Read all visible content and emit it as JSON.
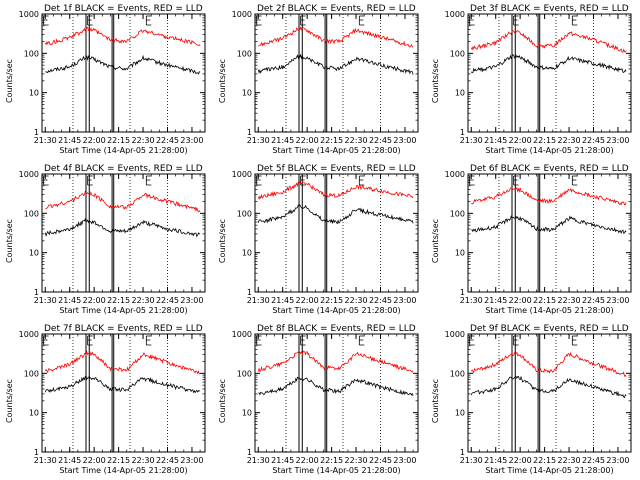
{
  "figure": {
    "xlabel": "Start Time (14-Apr-05 21:28:00)",
    "ylabel": "Counts/sec",
    "xticks": [
      "21:30",
      "21:45",
      "22:00",
      "22:15",
      "22:30",
      "22:45",
      "23:00"
    ],
    "yticks": [
      "1",
      "10",
      "100",
      "1000"
    ],
    "colors": {
      "events": "#000000",
      "lld": "#ff0000"
    }
  },
  "chart_data": [
    {
      "type": "line",
      "title": "Det 1f BLACK = Events, RED = LLD",
      "xticks": [
        "21:30",
        "21:45",
        "22:00",
        "22:15",
        "22:30",
        "22:45",
        "23:00"
      ],
      "ylim": [
        1,
        1000
      ],
      "yscale": "log",
      "series": [
        {
          "name": "Events",
          "color": "#000000",
          "x": [
            "21:30",
            "21:45",
            "21:55",
            "22:00",
            "22:10",
            "22:20",
            "22:30",
            "22:45",
            "23:05"
          ],
          "values": [
            35,
            45,
            80,
            70,
            45,
            40,
            75,
            50,
            32
          ]
        },
        {
          "name": "LLD",
          "color": "#ff0000",
          "x": [
            "21:30",
            "21:45",
            "21:55",
            "22:00",
            "22:10",
            "22:20",
            "22:30",
            "22:45",
            "23:05"
          ],
          "values": [
            170,
            250,
            420,
            380,
            220,
            200,
            380,
            260,
            170
          ]
        }
      ]
    },
    {
      "type": "line",
      "title": "Det 2f BLACK = Events, RED = LLD",
      "xticks": [
        "21:30",
        "21:45",
        "22:00",
        "22:15",
        "22:30",
        "22:45",
        "23:00"
      ],
      "ylim": [
        1,
        1000
      ],
      "yscale": "log",
      "series": [
        {
          "name": "Events",
          "color": "#000000",
          "x": [
            "21:30",
            "21:45",
            "21:55",
            "22:00",
            "22:10",
            "22:20",
            "22:30",
            "22:45",
            "23:05"
          ],
          "values": [
            35,
            45,
            85,
            75,
            45,
            40,
            75,
            50,
            32
          ]
        },
        {
          "name": "LLD",
          "color": "#ff0000",
          "x": [
            "21:30",
            "21:45",
            "21:55",
            "22:00",
            "22:10",
            "22:20",
            "22:30",
            "22:45",
            "23:05"
          ],
          "values": [
            160,
            240,
            430,
            390,
            210,
            200,
            390,
            260,
            150
          ]
        }
      ]
    },
    {
      "type": "line",
      "title": "Det 3f BLACK = Events, RED = LLD",
      "xticks": [
        "21:30",
        "21:45",
        "22:00",
        "22:15",
        "22:30",
        "22:45",
        "23:00"
      ],
      "ylim": [
        1,
        1000
      ],
      "yscale": "log",
      "series": [
        {
          "name": "Events",
          "color": "#000000",
          "x": [
            "21:30",
            "21:45",
            "21:55",
            "22:00",
            "22:10",
            "22:20",
            "22:30",
            "22:45",
            "23:05"
          ],
          "values": [
            35,
            45,
            85,
            80,
            45,
            40,
            75,
            55,
            35
          ]
        },
        {
          "name": "LLD",
          "color": "#ff0000",
          "x": [
            "21:30",
            "21:45",
            "21:55",
            "22:00",
            "22:10",
            "22:20",
            "22:30",
            "22:45",
            "23:05"
          ],
          "values": [
            130,
            190,
            350,
            330,
            160,
            150,
            330,
            220,
            110
          ]
        }
      ]
    },
    {
      "type": "line",
      "title": "Det 4f BLACK = Events, RED = LLD",
      "xticks": [
        "21:30",
        "21:45",
        "22:00",
        "22:15",
        "22:30",
        "22:45",
        "23:00"
      ],
      "ylim": [
        1,
        1000
      ],
      "yscale": "log",
      "series": [
        {
          "name": "Events",
          "color": "#000000",
          "x": [
            "21:30",
            "21:45",
            "21:55",
            "22:00",
            "22:10",
            "22:20",
            "22:30",
            "22:45",
            "23:05"
          ],
          "values": [
            30,
            40,
            65,
            60,
            35,
            35,
            60,
            40,
            28
          ]
        },
        {
          "name": "LLD",
          "color": "#ff0000",
          "x": [
            "21:30",
            "21:45",
            "21:55",
            "22:00",
            "22:10",
            "22:20",
            "22:30",
            "22:45",
            "23:05"
          ],
          "values": [
            140,
            200,
            330,
            300,
            150,
            140,
            300,
            200,
            120
          ]
        }
      ]
    },
    {
      "type": "line",
      "title": "Det 5f BLACK = Events, RED = LLD",
      "xticks": [
        "21:30",
        "21:45",
        "22:00",
        "22:15",
        "22:30",
        "22:45",
        "23:00"
      ],
      "ylim": [
        1,
        1000
      ],
      "yscale": "log",
      "series": [
        {
          "name": "Events",
          "color": "#000000",
          "x": [
            "21:30",
            "21:45",
            "21:55",
            "22:00",
            "22:10",
            "22:20",
            "22:30",
            "22:45",
            "23:05"
          ],
          "values": [
            60,
            80,
            150,
            140,
            65,
            60,
            125,
            90,
            60
          ]
        },
        {
          "name": "LLD",
          "color": "#ff0000",
          "x": [
            "21:30",
            "21:45",
            "21:55",
            "22:00",
            "22:10",
            "22:20",
            "22:30",
            "22:45",
            "23:05"
          ],
          "values": [
            250,
            350,
            580,
            550,
            300,
            280,
            480,
            380,
            260
          ]
        }
      ]
    },
    {
      "type": "line",
      "title": "Det 6f BLACK = Events, RED = LLD",
      "xticks": [
        "21:30",
        "21:45",
        "22:00",
        "22:15",
        "22:30",
        "22:45",
        "23:00"
      ],
      "ylim": [
        1,
        1000
      ],
      "yscale": "log",
      "series": [
        {
          "name": "Events",
          "color": "#000000",
          "x": [
            "21:30",
            "21:45",
            "21:55",
            "22:00",
            "22:10",
            "22:20",
            "22:30",
            "22:45",
            "23:05"
          ],
          "values": [
            35,
            45,
            80,
            75,
            40,
            38,
            75,
            50,
            33
          ]
        },
        {
          "name": "LLD",
          "color": "#ff0000",
          "x": [
            "21:30",
            "21:45",
            "21:55",
            "22:00",
            "22:10",
            "22:20",
            "22:30",
            "22:45",
            "23:05"
          ],
          "values": [
            190,
            260,
            420,
            400,
            210,
            200,
            400,
            270,
            170
          ]
        }
      ]
    },
    {
      "type": "line",
      "title": "Det 7f BLACK = Events, RED = LLD",
      "xticks": [
        "21:30",
        "21:45",
        "22:00",
        "22:15",
        "22:30",
        "22:45",
        "23:00"
      ],
      "ylim": [
        1,
        1000
      ],
      "yscale": "log",
      "series": [
        {
          "name": "Events",
          "color": "#000000",
          "x": [
            "21:30",
            "21:45",
            "21:55",
            "22:00",
            "22:10",
            "22:20",
            "22:30",
            "22:45",
            "23:05"
          ],
          "values": [
            35,
            45,
            80,
            75,
            40,
            38,
            75,
            50,
            33
          ]
        },
        {
          "name": "LLD",
          "color": "#ff0000",
          "x": [
            "21:30",
            "21:45",
            "21:55",
            "22:00",
            "22:10",
            "22:20",
            "22:30",
            "22:45",
            "23:05"
          ],
          "values": [
            110,
            170,
            320,
            300,
            130,
            120,
            300,
            190,
            100
          ]
        }
      ]
    },
    {
      "type": "line",
      "title": "Det 8f BLACK = Events, RED = LLD",
      "xticks": [
        "21:30",
        "21:45",
        "22:00",
        "22:15",
        "22:30",
        "22:45",
        "23:00"
      ],
      "ylim": [
        1,
        1000
      ],
      "yscale": "log",
      "series": [
        {
          "name": "Events",
          "color": "#000000",
          "x": [
            "21:30",
            "21:45",
            "21:55",
            "22:00",
            "22:10",
            "22:20",
            "22:30",
            "22:45",
            "23:05"
          ],
          "values": [
            30,
            40,
            75,
            70,
            38,
            35,
            70,
            45,
            28
          ]
        },
        {
          "name": "LLD",
          "color": "#ff0000",
          "x": [
            "21:30",
            "21:45",
            "21:55",
            "22:00",
            "22:10",
            "22:20",
            "22:30",
            "22:45",
            "23:05"
          ],
          "values": [
            120,
            180,
            350,
            320,
            140,
            130,
            320,
            200,
            110
          ]
        }
      ]
    },
    {
      "type": "line",
      "title": "Det 9f BLACK = Events, RED = LLD",
      "xticks": [
        "21:30",
        "21:45",
        "22:00",
        "22:15",
        "22:30",
        "22:45",
        "23:00"
      ],
      "ylim": [
        1,
        1000
      ],
      "yscale": "log",
      "series": [
        {
          "name": "Events",
          "color": "#000000",
          "x": [
            "21:30",
            "21:45",
            "21:55",
            "22:00",
            "22:10",
            "22:20",
            "22:30",
            "22:45",
            "23:05"
          ],
          "values": [
            30,
            40,
            80,
            75,
            38,
            35,
            70,
            45,
            26
          ]
        },
        {
          "name": "LLD",
          "color": "#ff0000",
          "x": [
            "21:30",
            "21:45",
            "21:55",
            "22:00",
            "22:10",
            "22:20",
            "22:30",
            "22:45",
            "23:05"
          ],
          "values": [
            110,
            170,
            320,
            300,
            120,
            110,
            310,
            180,
            90
          ]
        }
      ]
    }
  ]
}
